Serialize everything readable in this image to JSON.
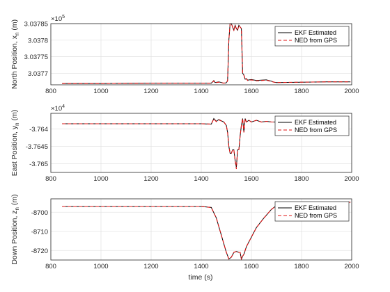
{
  "figure": {
    "xlabel": "time (s)"
  },
  "chart_data": [
    {
      "type": "line",
      "ylabel": "North Position, x",
      "ylabel_sub": "n",
      "ylabel_unit": " (m)",
      "exponent_base": "×10",
      "exponent_power": "5",
      "xlim": [
        800,
        2000
      ],
      "ylim": [
        3.037665,
        3.03785
      ],
      "xticks": [
        "800",
        "1000",
        "1200",
        "1400",
        "1600",
        "1800",
        "2000"
      ],
      "yticks": [
        {
          "value": 3.0377,
          "label": "3.0377"
        },
        {
          "value": 3.03775,
          "label": "3.03775"
        },
        {
          "value": 3.0378,
          "label": "3.0378"
        },
        {
          "value": 3.03785,
          "label": "3.03785"
        }
      ],
      "grid": true,
      "legend_position": "top-right",
      "series": [
        {
          "name": "EKF Estimated",
          "color": "#000000",
          "dash": "solid",
          "x": [
            845,
            1000,
            1200,
            1300,
            1440,
            1450,
            1455,
            1470,
            1490,
            1500,
            1505,
            1510,
            1515,
            1520,
            1525,
            1530,
            1535,
            1540,
            1545,
            1550,
            1555,
            1560,
            1565,
            1570,
            1575,
            1580,
            1585,
            1600,
            1620,
            1640,
            1660,
            1680,
            1690,
            1700,
            1800,
            1900,
            1995
          ],
          "y": [
            3.037669,
            3.037669,
            3.03767,
            3.03767,
            3.03767,
            3.037678,
            3.037672,
            3.037674,
            3.03767,
            3.037671,
            3.037678,
            3.0378,
            3.03785,
            3.03785,
            3.03784,
            3.03783,
            3.037845,
            3.037835,
            3.03783,
            3.037845,
            3.03784,
            3.037835,
            3.0377,
            3.037695,
            3.037682,
            3.037684,
            3.037679,
            3.037681,
            3.037678,
            3.037679,
            3.03768,
            3.037676,
            3.037673,
            3.037672,
            3.037673,
            3.037674,
            3.037674
          ]
        },
        {
          "name": "NED from GPS",
          "color": "#e01010",
          "dash": "dashed",
          "x": [
            845,
            1000,
            1200,
            1300,
            1440,
            1450,
            1455,
            1470,
            1490,
            1500,
            1505,
            1510,
            1515,
            1520,
            1525,
            1530,
            1535,
            1540,
            1545,
            1550,
            1555,
            1560,
            1565,
            1570,
            1575,
            1580,
            1585,
            1600,
            1620,
            1640,
            1660,
            1680,
            1690,
            1700,
            1800,
            1900,
            1995
          ],
          "y": [
            3.037669,
            3.037669,
            3.03767,
            3.03767,
            3.03767,
            3.037677,
            3.037671,
            3.037673,
            3.03767,
            3.037671,
            3.037677,
            3.0378,
            3.03785,
            3.03785,
            3.03784,
            3.03783,
            3.037845,
            3.037835,
            3.03783,
            3.037845,
            3.03784,
            3.037835,
            3.0377,
            3.037694,
            3.037681,
            3.037683,
            3.037678,
            3.03768,
            3.037677,
            3.037678,
            3.037679,
            3.037675,
            3.037673,
            3.037672,
            3.037673,
            3.037674,
            3.037674
          ]
        }
      ]
    },
    {
      "type": "line",
      "ylabel": "East Position, y",
      "ylabel_sub": "n",
      "ylabel_unit": " (m)",
      "exponent_base": "×10",
      "exponent_power": "4",
      "xlim": [
        800,
        2000
      ],
      "ylim": [
        -3.76525,
        -3.76355
      ],
      "xticks": [
        "800",
        "1000",
        "1200",
        "1400",
        "1600",
        "1800",
        "2000"
      ],
      "yticks": [
        {
          "value": -3.764,
          "label": "-3.764"
        },
        {
          "value": -3.7645,
          "label": "-3.7645"
        },
        {
          "value": -3.765,
          "label": "-3.765"
        }
      ],
      "grid": true,
      "legend_position": "top-right",
      "series": [
        {
          "name": "EKF Estimated",
          "color": "#000000",
          "dash": "solid",
          "x": [
            845,
            1000,
            1200,
            1400,
            1440,
            1450,
            1460,
            1470,
            1490,
            1500,
            1505,
            1510,
            1515,
            1520,
            1525,
            1530,
            1535,
            1540,
            1545,
            1550,
            1555,
            1560,
            1565,
            1570,
            1575,
            1580,
            1590,
            1600,
            1620,
            1640,
            1660,
            1680,
            1700,
            1720,
            1740,
            1750
          ],
          "y": [
            -3.76385,
            -3.76385,
            -3.76385,
            -3.76385,
            -3.76386,
            -3.7637,
            -3.76378,
            -3.76373,
            -3.7638,
            -3.7639,
            -3.7641,
            -3.7645,
            -3.7647,
            -3.7647,
            -3.7646,
            -3.7646,
            -3.7649,
            -3.7651,
            -3.7646,
            -3.7646,
            -3.7642,
            -3.7639,
            -3.7637,
            -3.7641,
            -3.7637,
            -3.7638,
            -3.76375,
            -3.7638,
            -3.76375,
            -3.7638,
            -3.76378,
            -3.7638,
            -3.7638,
            -3.76382,
            -3.76382,
            -3.76382
          ]
        },
        {
          "name": "NED from GPS",
          "color": "#e01010",
          "dash": "dashed",
          "x": [
            845,
            1000,
            1200,
            1400,
            1440,
            1450,
            1460,
            1470,
            1490,
            1500,
            1505,
            1510,
            1515,
            1520,
            1525,
            1530,
            1535,
            1540,
            1545,
            1550,
            1555,
            1560,
            1565,
            1570,
            1575,
            1580,
            1590,
            1600,
            1620,
            1640,
            1660,
            1680,
            1700,
            1720,
            1740,
            1750
          ],
          "y": [
            -3.76385,
            -3.76385,
            -3.76385,
            -3.76385,
            -3.76386,
            -3.76371,
            -3.76379,
            -3.76374,
            -3.7638,
            -3.7639,
            -3.7641,
            -3.7645,
            -3.7647,
            -3.7647,
            -3.7646,
            -3.7646,
            -3.7649,
            -3.76515,
            -3.7646,
            -3.7646,
            -3.7642,
            -3.7639,
            -3.7637,
            -3.7641,
            -3.7637,
            -3.7638,
            -3.76375,
            -3.7638,
            -3.76375,
            -3.7638,
            -3.76378,
            -3.7638,
            -3.7638,
            -3.76382,
            -3.76382,
            -3.76382
          ]
        }
      ]
    },
    {
      "type": "line",
      "ylabel": "Down Position, z",
      "ylabel_sub": "n",
      "ylabel_unit": " (m)",
      "xlim": [
        800,
        2000
      ],
      "ylim": [
        -8725,
        -8693
      ],
      "xticks": [
        "800",
        "1000",
        "1200",
        "1400",
        "1600",
        "1800",
        "2000"
      ],
      "yticks": [
        {
          "value": -8700,
          "label": "-8700"
        },
        {
          "value": -8710,
          "label": "-8710"
        },
        {
          "value": -8720,
          "label": "-8720"
        }
      ],
      "grid": true,
      "legend_position": "top-right",
      "series": [
        {
          "name": "EKF Estimated",
          "color": "#000000",
          "dash": "solid",
          "x": [
            845,
            1000,
            1200,
            1400,
            1440,
            1460,
            1480,
            1500,
            1510,
            1520,
            1530,
            1540,
            1550,
            1555,
            1560,
            1565,
            1570,
            1580,
            1600,
            1620,
            1650,
            1680,
            1700,
            1720,
            1750,
            1780,
            1800,
            1850,
            1900,
            1995
          ],
          "y": [
            -8697,
            -8697,
            -8697,
            -8697,
            -8697.5,
            -8703,
            -8712,
            -8721,
            -8724.5,
            -8723.5,
            -8721,
            -8720.5,
            -8721,
            -8721,
            -8724.5,
            -8723,
            -8722,
            -8718,
            -8713,
            -8708,
            -8703,
            -8698.5,
            -8696.5,
            -8696.8,
            -8695.5,
            -8695,
            -8695,
            -8695,
            -8694.8,
            -8694.8
          ]
        },
        {
          "name": "NED from GPS",
          "color": "#e01010",
          "dash": "dashed",
          "x": [
            845,
            1000,
            1200,
            1400,
            1440,
            1460,
            1480,
            1500,
            1510,
            1520,
            1530,
            1540,
            1550,
            1555,
            1560,
            1565,
            1570,
            1580,
            1600,
            1620,
            1650,
            1680,
            1700,
            1720,
            1750,
            1780,
            1800,
            1850,
            1900,
            1995
          ],
          "y": [
            -8697,
            -8697,
            -8697,
            -8697,
            -8697.5,
            -8703,
            -8712,
            -8721,
            -8724.5,
            -8723.5,
            -8721,
            -8720.5,
            -8721,
            -8721,
            -8724.5,
            -8723,
            -8722,
            -8718,
            -8713,
            -8708,
            -8703,
            -8698.5,
            -8696.5,
            -8696.8,
            -8695.5,
            -8695,
            -8695,
            -8695,
            -8694.8,
            -8694.8
          ]
        }
      ]
    }
  ]
}
